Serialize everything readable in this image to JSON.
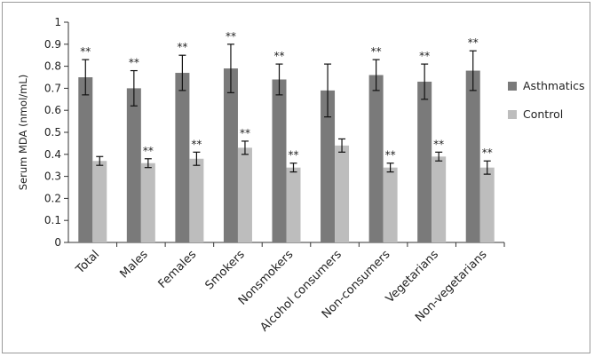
{
  "chart_data": {
    "type": "bar",
    "title": "",
    "xlabel": "",
    "ylabel": "Serum MDA (nmol/mL)",
    "ylim": [
      0,
      1
    ],
    "yticks": [
      "0",
      "0.1",
      "0.2",
      "0.3",
      "0.4",
      "0.5",
      "0.6",
      "0.7",
      "0.8",
      "0.9",
      "1"
    ],
    "grid": false,
    "legend_position": "right",
    "categories": [
      "Total",
      "Males",
      "Females",
      "Smokers",
      "Nonsmokers",
      "Alcohol consumers",
      "Non-consumers",
      "Vegetarians",
      "Non-vegetarians"
    ],
    "series": [
      {
        "name": "Asthmatics",
        "color": "#7a7a7a",
        "values": [
          0.75,
          0.7,
          0.77,
          0.79,
          0.74,
          0.69,
          0.76,
          0.73,
          0.78
        ],
        "errors": [
          0.08,
          0.08,
          0.08,
          0.11,
          0.07,
          0.12,
          0.07,
          0.08,
          0.09
        ],
        "significance": [
          "**",
          "**",
          "**",
          "**",
          "**",
          "",
          "**",
          "**",
          "**"
        ]
      },
      {
        "name": "Control",
        "color": "#bdbdbd",
        "values": [
          0.37,
          0.36,
          0.38,
          0.43,
          0.34,
          0.44,
          0.34,
          0.39,
          0.34
        ],
        "errors": [
          0.02,
          0.02,
          0.03,
          0.03,
          0.02,
          0.03,
          0.02,
          0.02,
          0.03
        ],
        "significance": [
          "",
          "**",
          "**",
          "**",
          "**",
          "",
          "**",
          "**",
          "**"
        ]
      }
    ]
  }
}
